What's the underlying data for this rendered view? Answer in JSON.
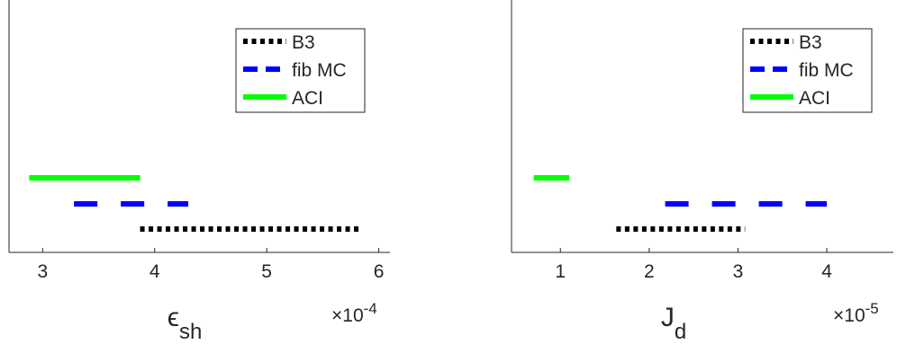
{
  "chart_data": [
    {
      "type": "interval",
      "xlim": [
        2.7,
        6.1
      ],
      "x_scale_label": "×10",
      "x_scale_exponent": "-4",
      "xlabel_main": "ϵ",
      "xlabel_sub": "sh",
      "xticks": [
        3,
        4,
        5,
        6
      ],
      "legend_position": "top-right",
      "series": [
        {
          "name": "B3",
          "color": "#000000",
          "style": "dotted",
          "x": [
            3.87,
            5.85
          ],
          "level": 1
        },
        {
          "name": "fib MC",
          "color": "#0000ff",
          "style": "dashed",
          "x": [
            3.28,
            4.3
          ],
          "level": 2
        },
        {
          "name": "ACI",
          "color": "#00ff00",
          "style": "solid",
          "x": [
            2.88,
            3.87
          ],
          "level": 3
        }
      ]
    },
    {
      "type": "interval",
      "xlim": [
        0.45,
        4.75
      ],
      "x_scale_label": "×10",
      "x_scale_exponent": "-5",
      "xlabel_main": "J",
      "xlabel_sub": "d",
      "xticks": [
        1,
        2,
        3,
        4
      ],
      "legend_position": "top-right",
      "series": [
        {
          "name": "B3",
          "color": "#000000",
          "style": "dotted",
          "x": [
            1.63,
            3.08
          ],
          "level": 1
        },
        {
          "name": "fib MC",
          "color": "#0000ff",
          "style": "dashed",
          "x": [
            2.18,
            4.0
          ],
          "level": 2
        },
        {
          "name": "ACI",
          "color": "#00ff00",
          "style": "solid",
          "x": [
            0.7,
            1.1
          ],
          "level": 3
        }
      ]
    }
  ]
}
